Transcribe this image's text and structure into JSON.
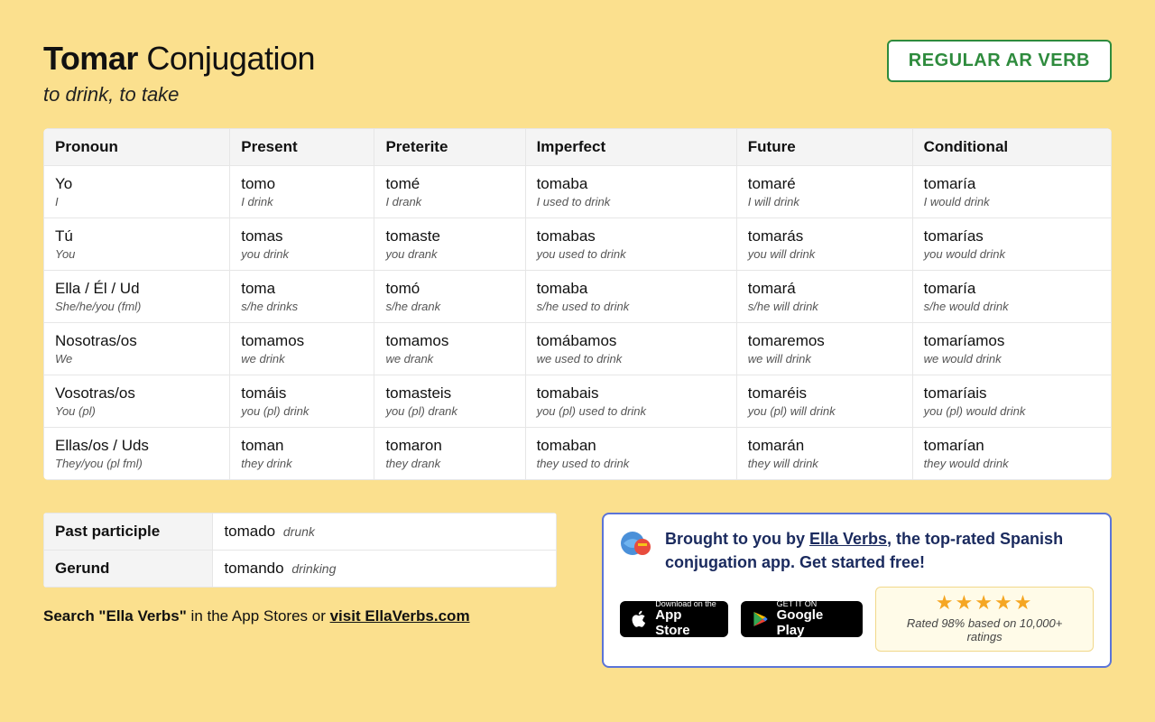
{
  "colors": {
    "page_bg": "#fbe08e",
    "badge_border": "#2e8b3d",
    "table_border": "#e6e6e6",
    "header_bg": "#f4f4f4",
    "promo_border": "#5b74d8",
    "promo_text": "#1a2a5e",
    "star": "#f5a623",
    "rating_bg": "#fffbe8",
    "rating_border": "#f1d88a"
  },
  "title": {
    "verb": "Tomar",
    "rest": "Conjugation",
    "subtitle": "to drink, to take"
  },
  "badge": "REGULAR AR VERB",
  "columns": [
    "Pronoun",
    "Present",
    "Preterite",
    "Imperfect",
    "Future",
    "Conditional"
  ],
  "rows": [
    {
      "pronoun": {
        "main": "Yo",
        "sub": "I"
      },
      "present": {
        "main": "tomo",
        "sub": "I drink"
      },
      "preterite": {
        "main": "tomé",
        "sub": "I drank"
      },
      "imperfect": {
        "main": "tomaba",
        "sub": "I used to drink"
      },
      "future": {
        "main": "tomaré",
        "sub": "I will drink"
      },
      "conditional": {
        "main": "tomaría",
        "sub": "I would drink"
      }
    },
    {
      "pronoun": {
        "main": "Tú",
        "sub": "You"
      },
      "present": {
        "main": "tomas",
        "sub": "you drink"
      },
      "preterite": {
        "main": "tomaste",
        "sub": "you drank"
      },
      "imperfect": {
        "main": "tomabas",
        "sub": "you used to drink"
      },
      "future": {
        "main": "tomarás",
        "sub": "you will drink"
      },
      "conditional": {
        "main": "tomarías",
        "sub": "you would drink"
      }
    },
    {
      "pronoun": {
        "main": "Ella / Él / Ud",
        "sub": "She/he/you (fml)"
      },
      "present": {
        "main": "toma",
        "sub": "s/he drinks"
      },
      "preterite": {
        "main": "tomó",
        "sub": "s/he drank"
      },
      "imperfect": {
        "main": "tomaba",
        "sub": "s/he used to drink"
      },
      "future": {
        "main": "tomará",
        "sub": "s/he will drink"
      },
      "conditional": {
        "main": "tomaría",
        "sub": "s/he would drink"
      }
    },
    {
      "pronoun": {
        "main": "Nosotras/os",
        "sub": "We"
      },
      "present": {
        "main": "tomamos",
        "sub": "we drink"
      },
      "preterite": {
        "main": "tomamos",
        "sub": "we drank"
      },
      "imperfect": {
        "main": "tomábamos",
        "sub": "we used to drink"
      },
      "future": {
        "main": "tomaremos",
        "sub": "we will drink"
      },
      "conditional": {
        "main": "tomaríamos",
        "sub": "we would drink"
      }
    },
    {
      "pronoun": {
        "main": "Vosotras/os",
        "sub": "You (pl)"
      },
      "present": {
        "main": "tomáis",
        "sub": "you (pl) drink"
      },
      "preterite": {
        "main": "tomasteis",
        "sub": "you (pl) drank"
      },
      "imperfect": {
        "main": "tomabais",
        "sub": "you (pl) used to drink"
      },
      "future": {
        "main": "tomaréis",
        "sub": "you (pl) will drink"
      },
      "conditional": {
        "main": "tomaríais",
        "sub": "you (pl) would drink"
      }
    },
    {
      "pronoun": {
        "main": "Ellas/os / Uds",
        "sub": "They/you (pl fml)"
      },
      "present": {
        "main": "toman",
        "sub": "they drink"
      },
      "preterite": {
        "main": "tomaron",
        "sub": "they drank"
      },
      "imperfect": {
        "main": "tomaban",
        "sub": "they used to drink"
      },
      "future": {
        "main": "tomarán",
        "sub": "they will drink"
      },
      "conditional": {
        "main": "tomarían",
        "sub": "they would drink"
      }
    }
  ],
  "forms": {
    "past_participle": {
      "label": "Past participle",
      "main": "tomado",
      "sub": "drunk"
    },
    "gerund": {
      "label": "Gerund",
      "main": "tomando",
      "sub": "drinking"
    }
  },
  "search_line": {
    "prefix": "Search \"Ella Verbs\"",
    "mid": " in the App Stores or ",
    "link": "visit EllaVerbs.com"
  },
  "promo": {
    "text_prefix": "Brought to you by ",
    "link": "Ella Verbs",
    "text_mid": ", the top-rated Spanish conjugation app. Get started free!",
    "appstore": {
      "small": "Download on the",
      "big": "App Store"
    },
    "playstore": {
      "small": "GET IT ON",
      "big": "Google Play"
    },
    "rating_text": "Rated 98% based on 10,000+ ratings"
  }
}
